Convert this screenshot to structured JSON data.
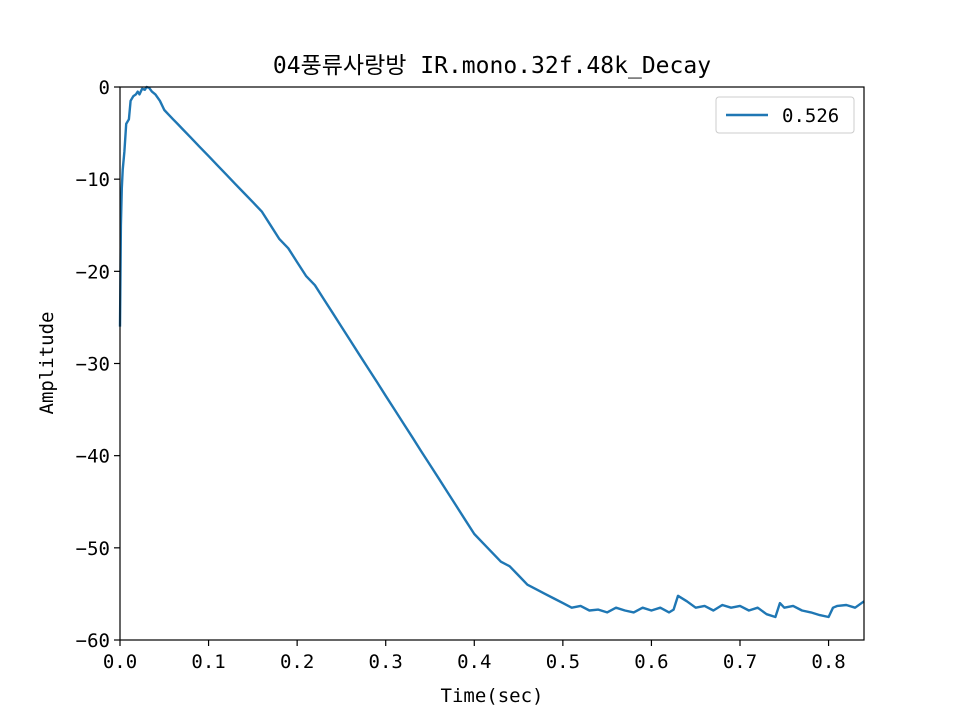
{
  "chart_data": {
    "type": "line",
    "title": "04풍류사랑방 IR.mono.32f.48k_Decay",
    "xlabel": "Time(sec)",
    "ylabel": "Amplitude",
    "xlim": [
      0,
      0.84
    ],
    "ylim": [
      -60,
      0
    ],
    "xticks": [
      "0.0",
      "0.1",
      "0.2",
      "0.3",
      "0.4",
      "0.5",
      "0.6",
      "0.7",
      "0.8"
    ],
    "xtick_values": [
      0,
      0.1,
      0.2,
      0.3,
      0.4,
      0.5,
      0.6,
      0.7,
      0.8
    ],
    "yticks": [
      "0",
      "−10",
      "−20",
      "−30",
      "−40",
      "−50",
      "−60"
    ],
    "ytick_values": [
      0,
      -10,
      -20,
      -30,
      -40,
      -50,
      -60
    ],
    "grid": false,
    "legend_position": "top-right",
    "series": [
      {
        "name": "0.526",
        "color": "#1f77b4",
        "x": [
          0.0,
          0.001,
          0.002,
          0.003,
          0.005,
          0.007,
          0.01,
          0.012,
          0.015,
          0.018,
          0.02,
          0.022,
          0.025,
          0.028,
          0.03,
          0.033,
          0.036,
          0.04,
          0.045,
          0.05,
          0.055,
          0.06,
          0.065,
          0.07,
          0.08,
          0.09,
          0.1,
          0.11,
          0.12,
          0.13,
          0.14,
          0.15,
          0.16,
          0.17,
          0.18,
          0.19,
          0.2,
          0.21,
          0.22,
          0.23,
          0.24,
          0.25,
          0.26,
          0.27,
          0.28,
          0.29,
          0.3,
          0.31,
          0.32,
          0.33,
          0.34,
          0.35,
          0.36,
          0.37,
          0.38,
          0.39,
          0.4,
          0.41,
          0.42,
          0.43,
          0.44,
          0.45,
          0.46,
          0.47,
          0.48,
          0.49,
          0.5,
          0.51,
          0.52,
          0.53,
          0.54,
          0.55,
          0.56,
          0.57,
          0.58,
          0.59,
          0.6,
          0.61,
          0.62,
          0.625,
          0.63,
          0.64,
          0.65,
          0.66,
          0.67,
          0.68,
          0.69,
          0.7,
          0.71,
          0.72,
          0.73,
          0.74,
          0.745,
          0.75,
          0.76,
          0.77,
          0.78,
          0.79,
          0.8,
          0.805,
          0.81,
          0.82,
          0.83,
          0.84
        ],
        "y": [
          -26,
          -15,
          -11,
          -9,
          -7,
          -4,
          -3.5,
          -1.5,
          -1,
          -0.8,
          -0.5,
          -0.8,
          -0.2,
          -0.3,
          0,
          -0.1,
          -0.5,
          -0.8,
          -1.5,
          -2.5,
          -3,
          -3.5,
          -4,
          -4.5,
          -5.5,
          -6.5,
          -7.5,
          -8.5,
          -9.5,
          -10.5,
          -11.5,
          -12.5,
          -13.5,
          -15,
          -16.5,
          -17.5,
          -19,
          -20.5,
          -21.5,
          -23,
          -24.5,
          -26,
          -27.5,
          -29,
          -30.5,
          -32,
          -33.5,
          -35,
          -36.5,
          -38,
          -39.5,
          -41,
          -42.5,
          -44,
          -45.5,
          -47,
          -48.5,
          -49.5,
          -50.5,
          -51.5,
          -52,
          -53,
          -54,
          -54.5,
          -55,
          -55.5,
          -56,
          -56.5,
          -56.3,
          -56.8,
          -56.7,
          -57,
          -56.5,
          -56.8,
          -57,
          -56.5,
          -56.8,
          -56.5,
          -57,
          -56.7,
          -55.2,
          -55.8,
          -56.5,
          -56.3,
          -56.8,
          -56.2,
          -56.5,
          -56.3,
          -56.8,
          -56.5,
          -57.2,
          -57.5,
          -56,
          -56.5,
          -56.3,
          -56.8,
          -57,
          -57.3,
          -57.5,
          -56.5,
          -56.3,
          -56.2,
          -56.5,
          -55.8
        ]
      }
    ]
  }
}
